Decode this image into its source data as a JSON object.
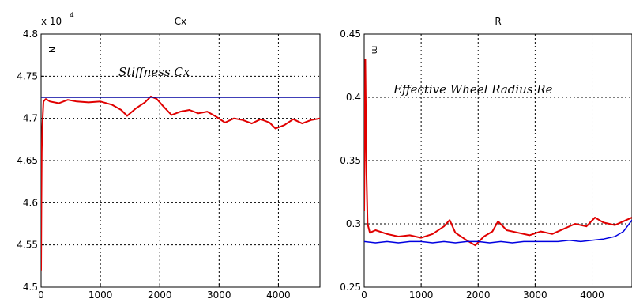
{
  "chart_data": [
    {
      "type": "line",
      "title": "Cx",
      "exponent_label": "x 10",
      "exponent_power": "4",
      "unit_label": "N",
      "annotation": "Stiffness Cx",
      "xlim": [
        0,
        4700
      ],
      "ylim": [
        4.5,
        4.8
      ],
      "xticks": [
        0,
        1000,
        2000,
        3000,
        4000
      ],
      "yticks": [
        4.5,
        4.55,
        4.6,
        4.65,
        4.7,
        4.75,
        4.8
      ],
      "ytick_labels": [
        "4.5",
        "4.55",
        "4.6",
        "4.65",
        "4.7",
        "4.75",
        "4.8"
      ],
      "grid": true,
      "series": [
        {
          "color": "#e00000",
          "x": [
            0,
            5,
            10,
            20,
            40,
            80,
            150,
            300,
            450,
            600,
            800,
            1000,
            1200,
            1350,
            1450,
            1600,
            1750,
            1850,
            1950,
            2050,
            2200,
            2350,
            2500,
            2650,
            2800,
            2950,
            3100,
            3250,
            3400,
            3550,
            3700,
            3850,
            3950,
            4100,
            4250,
            4400,
            4550,
            4700
          ],
          "y": [
            4.52,
            4.6,
            4.66,
            4.69,
            4.72,
            4.723,
            4.72,
            4.718,
            4.722,
            4.72,
            4.719,
            4.72,
            4.716,
            4.71,
            4.703,
            4.712,
            4.719,
            4.726,
            4.723,
            4.715,
            4.704,
            4.708,
            4.71,
            4.706,
            4.708,
            4.702,
            4.695,
            4.7,
            4.698,
            4.694,
            4.699,
            4.695,
            4.688,
            4.692,
            4.699,
            4.694,
            4.698,
            4.7
          ]
        },
        {
          "color": "#0000a0",
          "x": [
            0,
            4700
          ],
          "y": [
            4.725,
            4.725
          ]
        }
      ]
    },
    {
      "type": "line",
      "title": "R",
      "unit_label": "m",
      "annotation": "Effective Wheel Radius Re",
      "xlim": [
        0,
        4700
      ],
      "ylim": [
        0.25,
        0.45
      ],
      "xticks": [
        0,
        1000,
        2000,
        3000,
        4000
      ],
      "yticks": [
        0.25,
        0.3,
        0.35,
        0.4,
        0.45
      ],
      "ytick_labels": [
        "0.25",
        "0.3",
        "0.35",
        "0.4",
        "0.45"
      ],
      "grid": true,
      "series": [
        {
          "color": "#e00000",
          "x": [
            0,
            20,
            40,
            60,
            100,
            200,
            400,
            600,
            800,
            1000,
            1200,
            1400,
            1500,
            1600,
            1800,
            1950,
            2100,
            2250,
            2350,
            2500,
            2700,
            2900,
            3100,
            3300,
            3500,
            3700,
            3900,
            4050,
            4200,
            4400,
            4600,
            4700
          ],
          "y": [
            0.31,
            0.43,
            0.34,
            0.3,
            0.293,
            0.295,
            0.292,
            0.29,
            0.291,
            0.289,
            0.292,
            0.298,
            0.303,
            0.293,
            0.287,
            0.283,
            0.29,
            0.294,
            0.302,
            0.295,
            0.293,
            0.291,
            0.294,
            0.292,
            0.296,
            0.3,
            0.298,
            0.305,
            0.301,
            0.299,
            0.303,
            0.305
          ]
        },
        {
          "color": "#0000e0",
          "x": [
            0,
            200,
            400,
            600,
            800,
            1000,
            1200,
            1400,
            1600,
            1800,
            2000,
            2200,
            2400,
            2600,
            2800,
            3000,
            3200,
            3400,
            3600,
            3800,
            4000,
            4200,
            4400,
            4550,
            4700
          ],
          "y": [
            0.286,
            0.285,
            0.286,
            0.285,
            0.286,
            0.286,
            0.285,
            0.286,
            0.285,
            0.286,
            0.286,
            0.285,
            0.286,
            0.285,
            0.286,
            0.286,
            0.286,
            0.286,
            0.287,
            0.286,
            0.287,
            0.288,
            0.29,
            0.294,
            0.303
          ]
        }
      ]
    }
  ]
}
